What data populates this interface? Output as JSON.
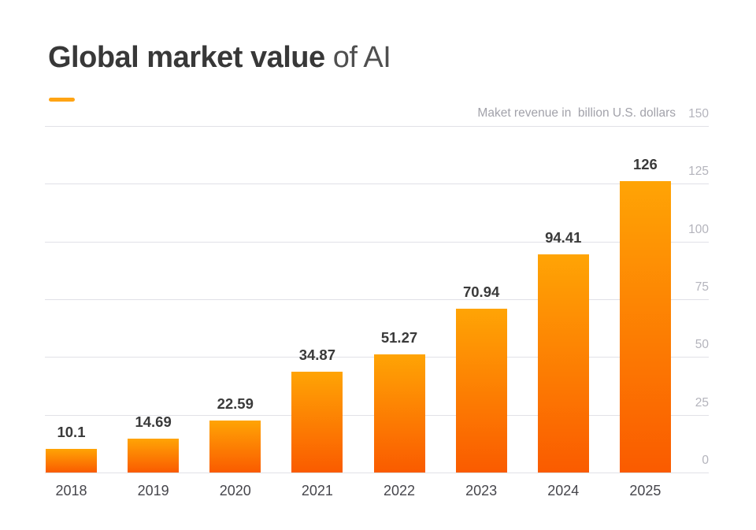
{
  "title": {
    "bold": "Global market value",
    "light": " of AI"
  },
  "colors": {
    "accent": "#FFA414",
    "bar_gradient_top": "#FFA405",
    "bar_gradient_bottom": "#FA5B00",
    "gridline": "#e1e1e7",
    "title_bold": "#383838",
    "title_light": "#4f4f4f",
    "subtitle_text": "#a2a2aa",
    "y_tick_text": "#b4b4bc",
    "x_tick_text": "#46464c",
    "value_label_text": "#3a3a3a",
    "background": "#ffffff"
  },
  "chart_data": {
    "type": "bar",
    "title": "Global market value of AI",
    "ylabel": "Maket revenue in  billion U.S. dollars",
    "xlabel": "",
    "categories": [
      "2018",
      "2019",
      "2020",
      "2021",
      "2022",
      "2023",
      "2024",
      "2025"
    ],
    "values": [
      10.1,
      14.69,
      22.59,
      34.87,
      51.27,
      70.94,
      94.41,
      126
    ],
    "value_labels": [
      "10.1",
      "14.69",
      "22.59",
      "34.87",
      "51.27",
      "70.94",
      "94.41",
      "126"
    ],
    "yticks": [
      0,
      25,
      50,
      75,
      100,
      125,
      150
    ],
    "ylim": [
      0,
      150
    ],
    "grid": true,
    "legend": "none",
    "y_axis_side": "right"
  }
}
